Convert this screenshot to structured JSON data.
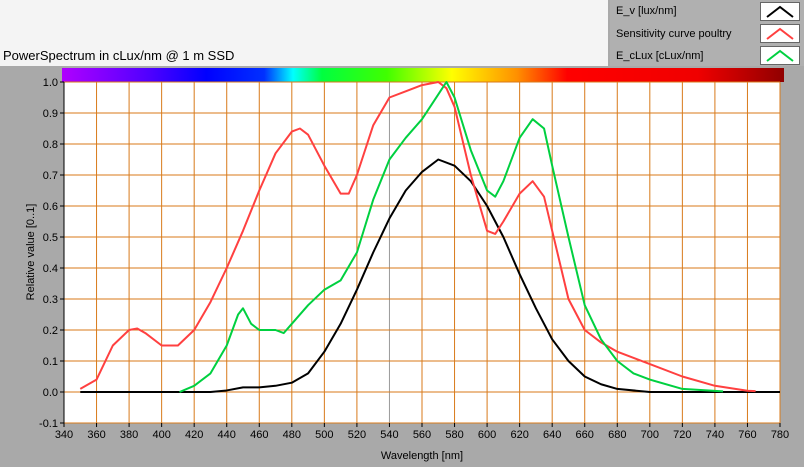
{
  "chart_data": {
    "type": "line",
    "title": "PowerSpectrum in cLux/nm @ 1 m SSD",
    "xlabel": "Wavelength [nm]",
    "ylabel": "Relative value [0..1]",
    "xlim": [
      340,
      780
    ],
    "ylim": [
      -0.1,
      1.0
    ],
    "xticks": [
      340,
      360,
      380,
      400,
      420,
      440,
      460,
      480,
      500,
      520,
      540,
      560,
      580,
      600,
      620,
      640,
      660,
      680,
      700,
      720,
      740,
      760,
      780
    ],
    "yticks": [
      "-0.1",
      "0.0",
      "0.1",
      "0.2",
      "0.3",
      "0.4",
      "0.5",
      "0.6",
      "0.7",
      "0.8",
      "0.9",
      "1.0"
    ],
    "grid": true,
    "legend_placement": "top-right",
    "series": [
      {
        "name": "E_v [lux/nm]",
        "color": "#000000",
        "points": [
          [
            350,
            0
          ],
          [
            430,
            0
          ],
          [
            440,
            0.005
          ],
          [
            450,
            0.015
          ],
          [
            460,
            0.015
          ],
          [
            470,
            0.02
          ],
          [
            480,
            0.03
          ],
          [
            490,
            0.06
          ],
          [
            500,
            0.13
          ],
          [
            510,
            0.22
          ],
          [
            520,
            0.33
          ],
          [
            530,
            0.45
          ],
          [
            540,
            0.56
          ],
          [
            550,
            0.65
          ],
          [
            560,
            0.71
          ],
          [
            570,
            0.75
          ],
          [
            580,
            0.73
          ],
          [
            590,
            0.68
          ],
          [
            600,
            0.6
          ],
          [
            610,
            0.5
          ],
          [
            620,
            0.38
          ],
          [
            630,
            0.27
          ],
          [
            640,
            0.17
          ],
          [
            650,
            0.1
          ],
          [
            660,
            0.05
          ],
          [
            670,
            0.025
          ],
          [
            680,
            0.01
          ],
          [
            700,
            0
          ],
          [
            780,
            0
          ]
        ]
      },
      {
        "name": "Sensitivity curve poultry",
        "color": "#ff4040",
        "points": [
          [
            350,
            0.01
          ],
          [
            360,
            0.04
          ],
          [
            370,
            0.15
          ],
          [
            380,
            0.2
          ],
          [
            385,
            0.205
          ],
          [
            390,
            0.19
          ],
          [
            400,
            0.15
          ],
          [
            410,
            0.15
          ],
          [
            420,
            0.2
          ],
          [
            430,
            0.29
          ],
          [
            440,
            0.4
          ],
          [
            450,
            0.52
          ],
          [
            460,
            0.65
          ],
          [
            470,
            0.77
          ],
          [
            480,
            0.84
          ],
          [
            485,
            0.85
          ],
          [
            490,
            0.83
          ],
          [
            500,
            0.73
          ],
          [
            510,
            0.64
          ],
          [
            515,
            0.64
          ],
          [
            520,
            0.7
          ],
          [
            530,
            0.86
          ],
          [
            540,
            0.95
          ],
          [
            550,
            0.97
          ],
          [
            560,
            0.99
          ],
          [
            570,
            1.0
          ],
          [
            575,
            0.98
          ],
          [
            580,
            0.92
          ],
          [
            590,
            0.7
          ],
          [
            600,
            0.52
          ],
          [
            605,
            0.51
          ],
          [
            610,
            0.55
          ],
          [
            620,
            0.64
          ],
          [
            628,
            0.68
          ],
          [
            635,
            0.63
          ],
          [
            640,
            0.52
          ],
          [
            650,
            0.3
          ],
          [
            660,
            0.2
          ],
          [
            670,
            0.16
          ],
          [
            680,
            0.13
          ],
          [
            700,
            0.09
          ],
          [
            720,
            0.05
          ],
          [
            740,
            0.02
          ],
          [
            760,
            0.004
          ],
          [
            765,
            0.003
          ]
        ]
      },
      {
        "name": "E_cLux [cLux/nm]",
        "color": "#00d040",
        "points": [
          [
            411,
            0
          ],
          [
            420,
            0.02
          ],
          [
            430,
            0.06
          ],
          [
            440,
            0.15
          ],
          [
            447,
            0.25
          ],
          [
            450,
            0.27
          ],
          [
            455,
            0.22
          ],
          [
            460,
            0.2
          ],
          [
            470,
            0.2
          ],
          [
            475,
            0.19
          ],
          [
            480,
            0.22
          ],
          [
            490,
            0.28
          ],
          [
            500,
            0.33
          ],
          [
            510,
            0.36
          ],
          [
            520,
            0.45
          ],
          [
            530,
            0.62
          ],
          [
            540,
            0.75
          ],
          [
            550,
            0.82
          ],
          [
            560,
            0.88
          ],
          [
            570,
            0.96
          ],
          [
            575,
            1.0
          ],
          [
            580,
            0.95
          ],
          [
            590,
            0.78
          ],
          [
            600,
            0.65
          ],
          [
            605,
            0.63
          ],
          [
            610,
            0.68
          ],
          [
            620,
            0.82
          ],
          [
            628,
            0.88
          ],
          [
            635,
            0.85
          ],
          [
            640,
            0.73
          ],
          [
            650,
            0.5
          ],
          [
            660,
            0.28
          ],
          [
            670,
            0.17
          ],
          [
            680,
            0.1
          ],
          [
            690,
            0.06
          ],
          [
            700,
            0.04
          ],
          [
            720,
            0.01
          ],
          [
            745,
            0.002
          ]
        ]
      }
    ]
  }
}
